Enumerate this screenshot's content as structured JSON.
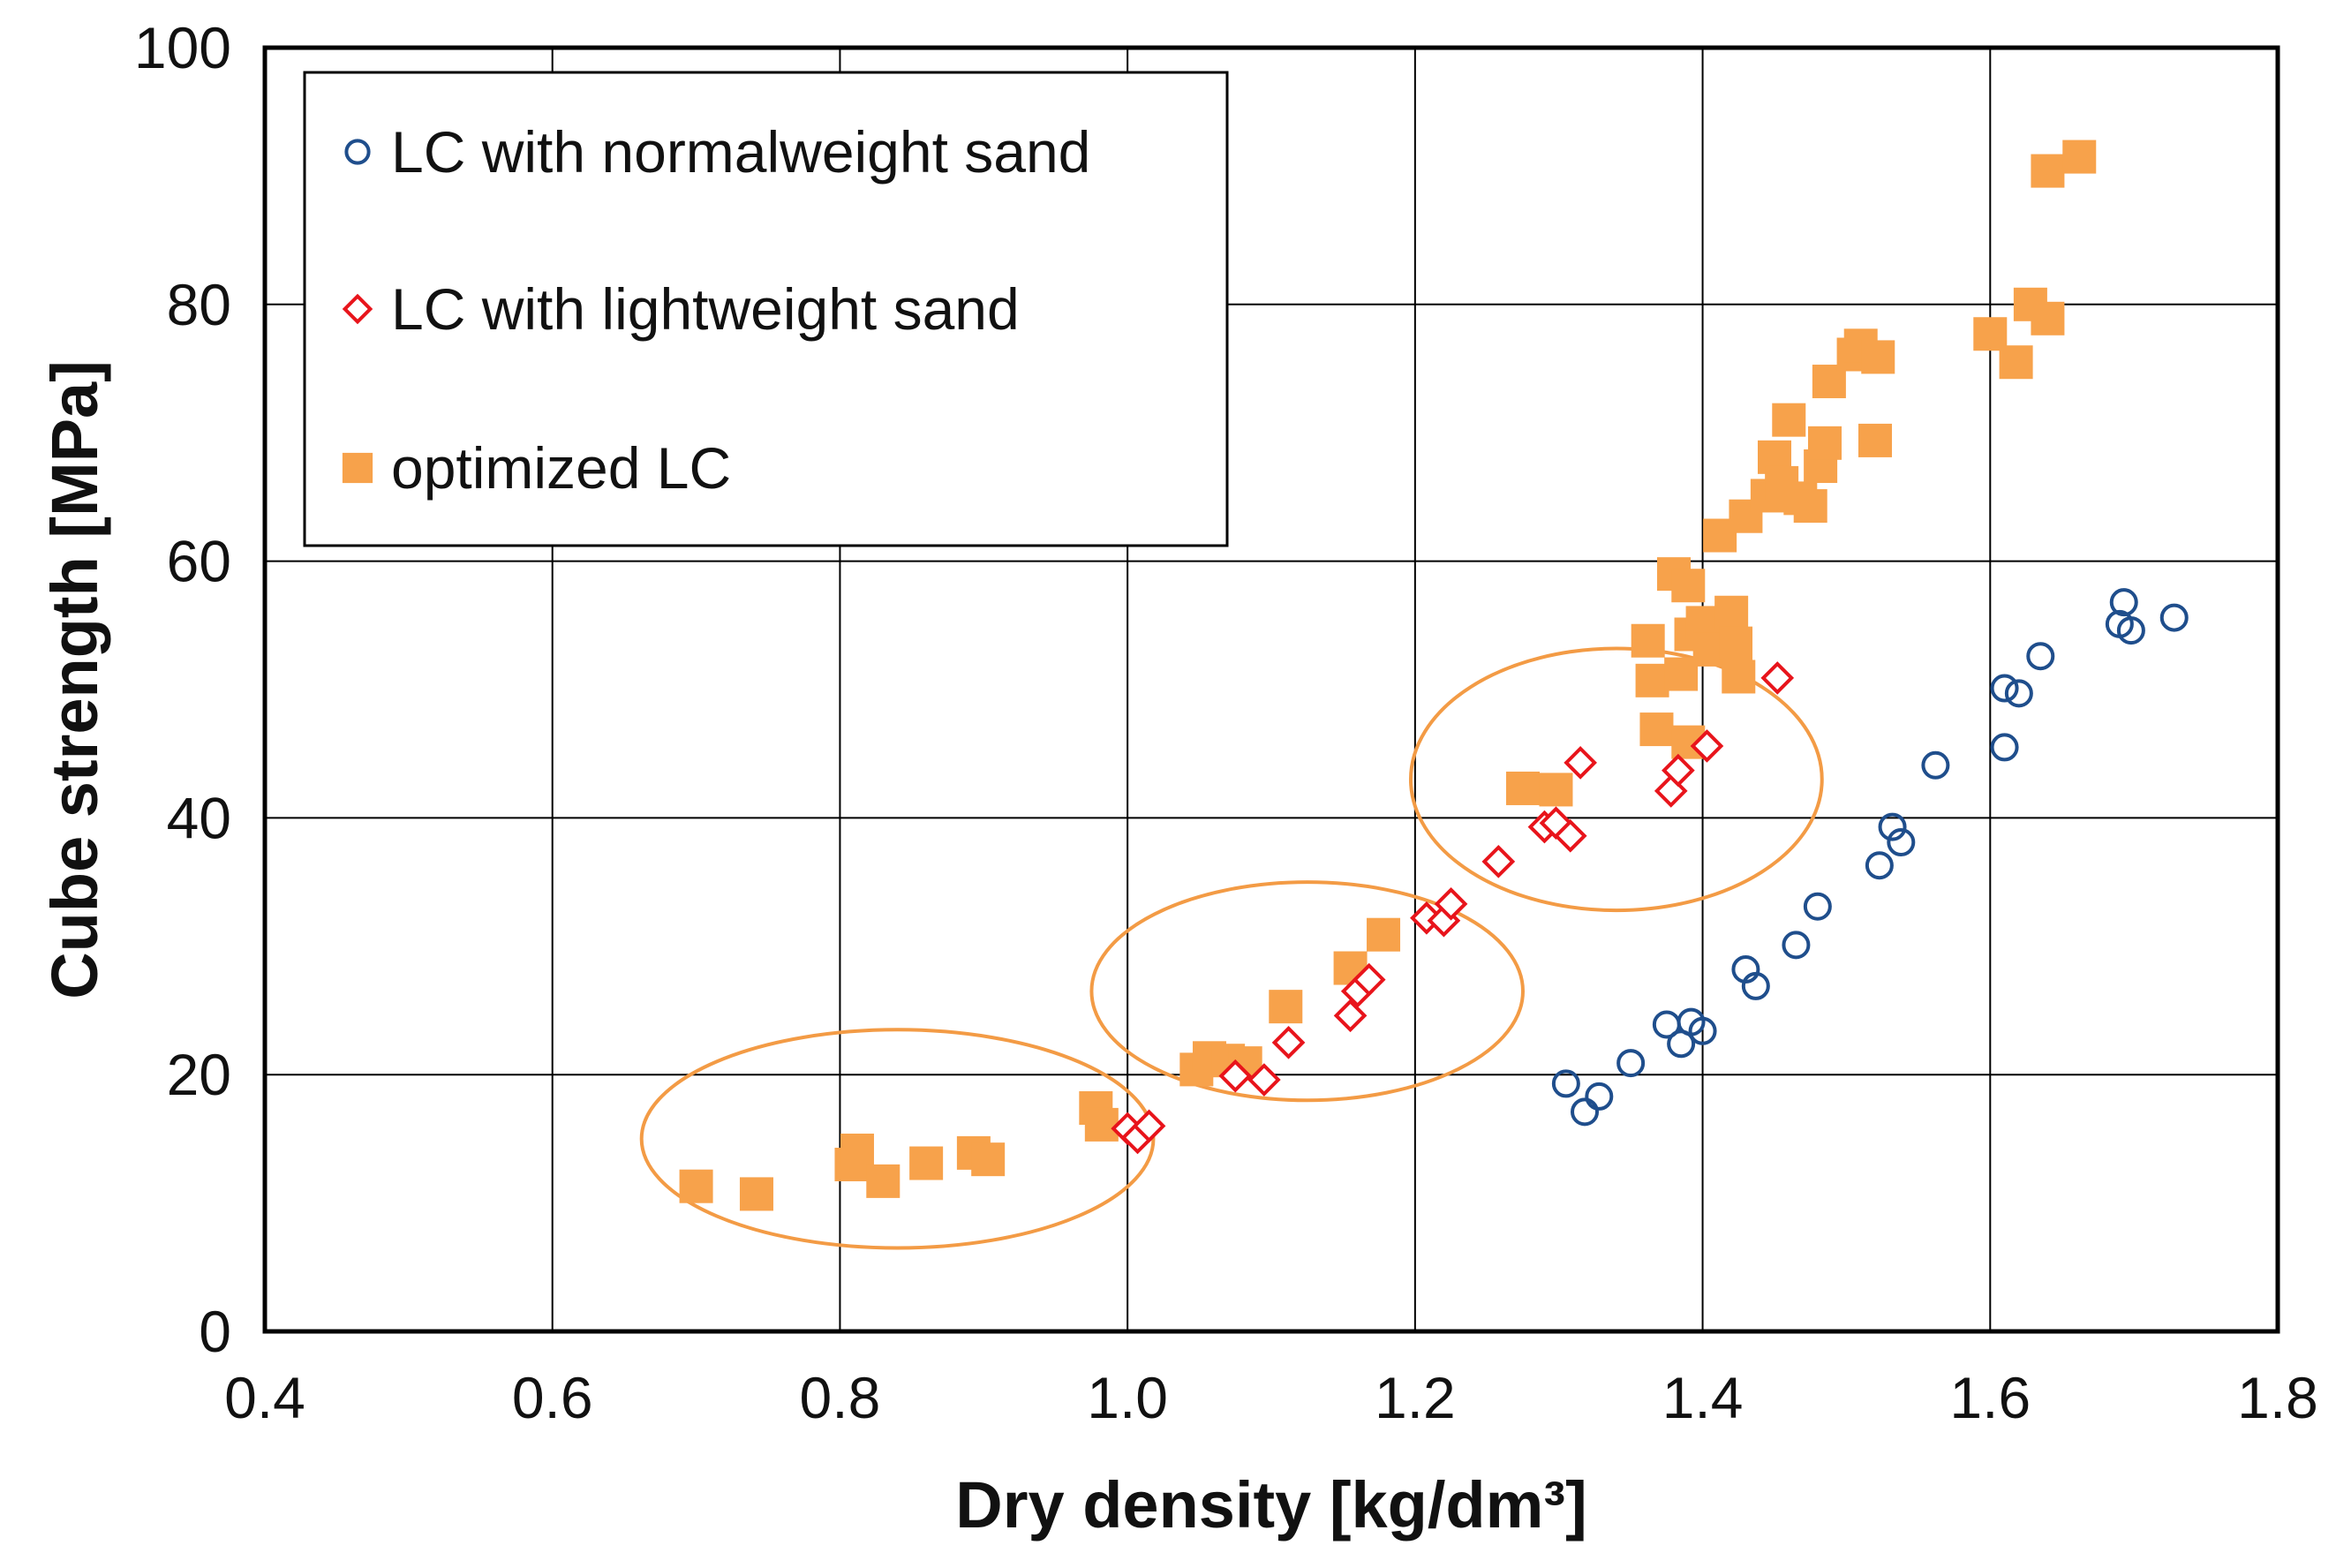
{
  "chart_data": {
    "type": "scatter",
    "title": "",
    "xlabel": "Dry density [kg/dm³]",
    "ylabel": "Cube strength [MPa]",
    "xlim": [
      0.4,
      1.8
    ],
    "ylim": [
      0,
      100
    ],
    "xticks": [
      "0.4",
      "0.6",
      "0.8",
      "1.0",
      "1.2",
      "1.4",
      "1.6",
      "1.8"
    ],
    "yticks": [
      "0",
      "20",
      "40",
      "60",
      "80",
      "100"
    ],
    "grid": true,
    "legend_position": "top-left",
    "series": [
      {
        "name": "LC with normalweight sand",
        "marker": "circle-open",
        "color": "#1f4e8c",
        "points": [
          [
            1.305,
            19.3
          ],
          [
            1.318,
            17.1
          ],
          [
            1.328,
            18.3
          ],
          [
            1.35,
            20.9
          ],
          [
            1.375,
            23.9
          ],
          [
            1.385,
            22.4
          ],
          [
            1.392,
            24.1
          ],
          [
            1.4,
            23.4
          ],
          [
            1.43,
            28.2
          ],
          [
            1.437,
            26.9
          ],
          [
            1.465,
            30.1
          ],
          [
            1.48,
            33.1
          ],
          [
            1.523,
            36.3
          ],
          [
            1.532,
            39.3
          ],
          [
            1.538,
            38.1
          ],
          [
            1.562,
            44.1
          ],
          [
            1.61,
            45.5
          ],
          [
            1.61,
            50.1
          ],
          [
            1.62,
            49.7
          ],
          [
            1.635,
            52.6
          ],
          [
            1.69,
            55.1
          ],
          [
            1.693,
            56.8
          ],
          [
            1.698,
            54.6
          ],
          [
            1.728,
            55.6
          ]
        ]
      },
      {
        "name": "LC with lightweight sand",
        "marker": "diamond-open",
        "color": "#e8141b",
        "points": [
          [
            1.0,
            15.8
          ],
          [
            1.007,
            15.1
          ],
          [
            1.015,
            16.0
          ],
          [
            1.075,
            19.9
          ],
          [
            1.095,
            19.6
          ],
          [
            1.112,
            22.5
          ],
          [
            1.155,
            24.6
          ],
          [
            1.16,
            26.5
          ],
          [
            1.168,
            27.4
          ],
          [
            1.208,
            32.2
          ],
          [
            1.22,
            32.0
          ],
          [
            1.225,
            33.3
          ],
          [
            1.258,
            36.6
          ],
          [
            1.29,
            39.3
          ],
          [
            1.298,
            39.6
          ],
          [
            1.308,
            38.6
          ],
          [
            1.315,
            44.3
          ],
          [
            1.378,
            42.1
          ],
          [
            1.383,
            43.7
          ],
          [
            1.403,
            45.6
          ],
          [
            1.452,
            50.9
          ]
        ]
      },
      {
        "name": "optimized LC",
        "marker": "square-filled",
        "color": "#f7a24b",
        "points": [
          [
            0.7,
            11.3
          ],
          [
            0.742,
            10.7
          ],
          [
            0.808,
            13.0
          ],
          [
            0.812,
            14.1
          ],
          [
            0.83,
            11.7
          ],
          [
            0.86,
            13.1
          ],
          [
            0.893,
            13.9
          ],
          [
            0.903,
            13.4
          ],
          [
            0.978,
            17.4
          ],
          [
            0.982,
            16.1
          ],
          [
            1.048,
            20.4
          ],
          [
            1.057,
            21.3
          ],
          [
            1.07,
            21.1
          ],
          [
            1.082,
            20.9
          ],
          [
            1.11,
            25.3
          ],
          [
            1.155,
            28.3
          ],
          [
            1.178,
            30.9
          ],
          [
            1.275,
            42.3
          ],
          [
            1.298,
            42.2
          ],
          [
            1.362,
            53.8
          ],
          [
            1.365,
            50.7
          ],
          [
            1.368,
            46.9
          ],
          [
            1.38,
            59.0
          ],
          [
            1.385,
            51.2
          ],
          [
            1.39,
            58.1
          ],
          [
            1.39,
            45.9
          ],
          [
            1.392,
            54.3
          ],
          [
            1.4,
            55.2
          ],
          [
            1.405,
            53.1
          ],
          [
            1.412,
            62.0
          ],
          [
            1.42,
            56.0
          ],
          [
            1.423,
            53.6
          ],
          [
            1.425,
            51.0
          ],
          [
            1.43,
            63.5
          ],
          [
            1.445,
            65.1
          ],
          [
            1.45,
            68.1
          ],
          [
            1.455,
            66.1
          ],
          [
            1.46,
            71.0
          ],
          [
            1.468,
            64.9
          ],
          [
            1.475,
            64.3
          ],
          [
            1.482,
            67.4
          ],
          [
            1.485,
            69.2
          ],
          [
            1.488,
            74.0
          ],
          [
            1.505,
            76.1
          ],
          [
            1.51,
            76.8
          ],
          [
            1.52,
            69.4
          ],
          [
            1.522,
            75.9
          ],
          [
            1.6,
            77.7
          ],
          [
            1.618,
            75.5
          ],
          [
            1.628,
            80.0
          ],
          [
            1.64,
            78.9
          ],
          [
            1.64,
            90.4
          ],
          [
            1.662,
            91.5
          ]
        ]
      }
    ],
    "annotations": [
      {
        "shape": "ellipse",
        "color": "#f39b45",
        "center": [
          0.84,
          15
        ],
        "radius_x": 0.178,
        "radius_y": 8.5
      },
      {
        "shape": "ellipse",
        "color": "#f39b45",
        "center": [
          1.125,
          26.5
        ],
        "radius_x": 0.15,
        "radius_y": 8.5
      },
      {
        "shape": "ellipse",
        "color": "#f39b45",
        "center": [
          1.34,
          43
        ],
        "radius_x": 0.143,
        "radius_y": 10.2
      }
    ]
  }
}
